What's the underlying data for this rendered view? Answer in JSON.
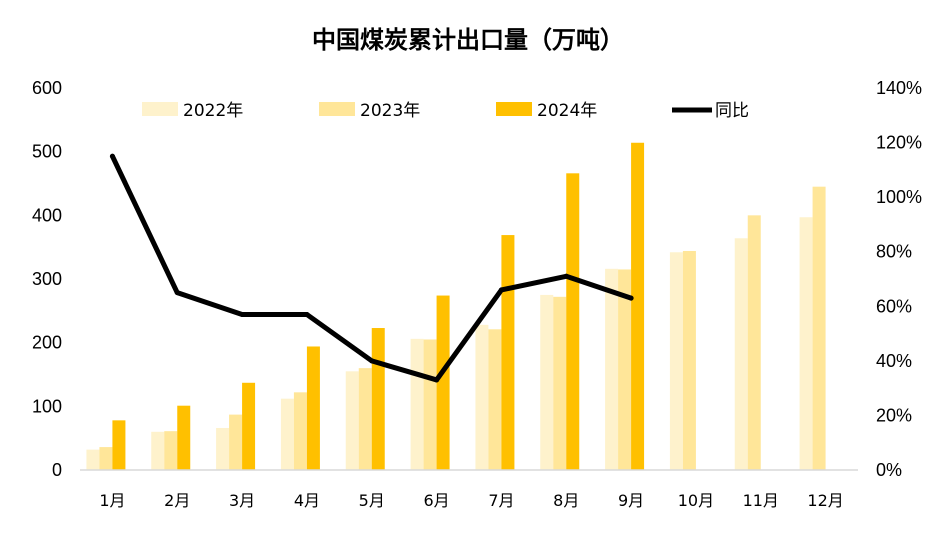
{
  "chart_data": {
    "type": "bar",
    "title": "中国煤炭累计出口量（万吨）",
    "categories": [
      "1月",
      "2月",
      "3月",
      "4月",
      "5月",
      "6月",
      "7月",
      "8月",
      "9月",
      "10月",
      "11月",
      "12月"
    ],
    "series": [
      {
        "name": "2022年",
        "type": "bar",
        "axis": "left",
        "color": "#FEF2CC",
        "values": [
          32,
          60,
          66,
          112,
          155,
          206,
          228,
          275,
          316,
          342,
          364,
          397
        ]
      },
      {
        "name": "2023年",
        "type": "bar",
        "axis": "left",
        "color": "#FFE699",
        "values": [
          36,
          61,
          87,
          122,
          160,
          205,
          221,
          272,
          315,
          344,
          400,
          445
        ]
      },
      {
        "name": "2024年",
        "type": "bar",
        "axis": "left",
        "color": "#FFC000",
        "values": [
          78,
          101,
          137,
          194,
          223,
          274,
          369,
          466,
          514,
          null,
          null,
          null
        ]
      },
      {
        "name": "同比",
        "type": "line",
        "axis": "right",
        "color": "#000000",
        "values": [
          1.15,
          0.65,
          0.57,
          0.57,
          0.4,
          0.33,
          0.66,
          0.71,
          0.63,
          null,
          null,
          null
        ]
      }
    ],
    "ylim": [
      0,
      600
    ],
    "yticks": [
      "0",
      "100",
      "200",
      "300",
      "400",
      "500",
      "600"
    ],
    "y2lim": [
      0,
      1.4
    ],
    "y2ticks": [
      "0%",
      "20%",
      "40%",
      "60%",
      "80%",
      "100%",
      "120%",
      "140%"
    ],
    "grid": false,
    "legend_position": "top"
  }
}
